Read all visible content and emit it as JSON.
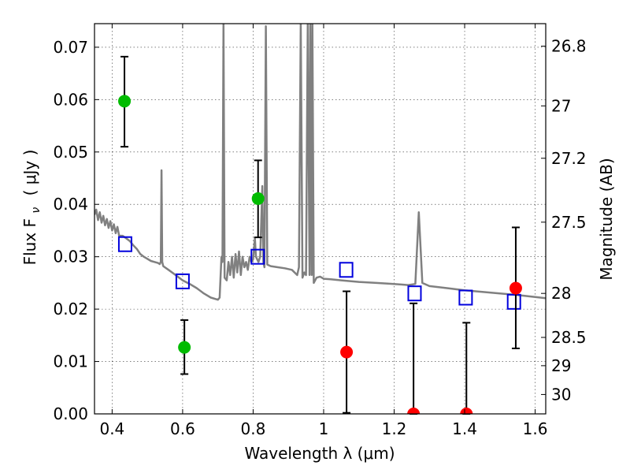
{
  "chart_data": {
    "type": "scatter",
    "x_axis": {
      "label": "Wavelength  λ (μm)",
      "range": [
        0.35,
        1.63
      ],
      "ticks": [
        0.4,
        0.6,
        0.8,
        1,
        1.2,
        1.4,
        1.6
      ],
      "tick_labels": [
        "0.4",
        "0.6",
        "0.8",
        "1",
        "1.2",
        "1.4",
        "1.6"
      ]
    },
    "y_axis": {
      "label": "Flux  F",
      "label_subscript": "ν",
      "label_units": "( μJy )",
      "range": [
        0.0,
        0.0745
      ],
      "ticks": [
        0.0,
        0.01,
        0.02,
        0.03,
        0.04,
        0.05,
        0.06,
        0.07
      ],
      "tick_labels": [
        "0.00",
        "0.01",
        "0.02",
        "0.03",
        "0.04",
        "0.05",
        "0.06",
        "0.07"
      ]
    },
    "y2_axis": {
      "label": "Magnitude (AB)",
      "tick_flux": [
        0.0702,
        0.0588,
        0.0488,
        0.0366,
        0.023,
        0.0146,
        0.0092,
        0.0037
      ],
      "tick_labels": [
        "26.8",
        "27",
        "27.2",
        "27.5",
        "28",
        "28.5",
        "29",
        "30"
      ]
    },
    "grid": true,
    "model_spectrum": {
      "color": "#808080",
      "points": [
        [
          0.35,
          0.038
        ],
        [
          0.355,
          0.039
        ],
        [
          0.36,
          0.037
        ],
        [
          0.365,
          0.0385
        ],
        [
          0.37,
          0.0365
        ],
        [
          0.375,
          0.0378
        ],
        [
          0.38,
          0.036
        ],
        [
          0.385,
          0.0372
        ],
        [
          0.39,
          0.0355
        ],
        [
          0.395,
          0.0368
        ],
        [
          0.4,
          0.035
        ],
        [
          0.405,
          0.0362
        ],
        [
          0.41,
          0.0345
        ],
        [
          0.415,
          0.0357
        ],
        [
          0.42,
          0.034
        ],
        [
          0.43,
          0.034
        ],
        [
          0.44,
          0.0335
        ],
        [
          0.45,
          0.033
        ],
        [
          0.46,
          0.0322
        ],
        [
          0.47,
          0.0315
        ],
        [
          0.48,
          0.0305
        ],
        [
          0.49,
          0.03
        ],
        [
          0.5,
          0.0296
        ],
        [
          0.51,
          0.0292
        ],
        [
          0.52,
          0.029
        ],
        [
          0.53,
          0.0288
        ],
        [
          0.535,
          0.0286
        ],
        [
          0.538,
          0.029
        ],
        [
          0.54,
          0.0465
        ],
        [
          0.542,
          0.029
        ],
        [
          0.545,
          0.0282
        ],
        [
          0.56,
          0.0275
        ],
        [
          0.58,
          0.0265
        ],
        [
          0.6,
          0.0255
        ],
        [
          0.62,
          0.0248
        ],
        [
          0.64,
          0.024
        ],
        [
          0.66,
          0.023
        ],
        [
          0.68,
          0.0222
        ],
        [
          0.7,
          0.0218
        ],
        [
          0.705,
          0.0222
        ],
        [
          0.71,
          0.03
        ],
        [
          0.713,
          0.029
        ],
        [
          0.716,
          0.0745
        ],
        [
          0.719,
          0.026
        ],
        [
          0.725,
          0.0255
        ],
        [
          0.73,
          0.029
        ],
        [
          0.735,
          0.0265
        ],
        [
          0.74,
          0.03
        ],
        [
          0.745,
          0.026
        ],
        [
          0.75,
          0.0305
        ],
        [
          0.755,
          0.027
        ],
        [
          0.76,
          0.031
        ],
        [
          0.765,
          0.0265
        ],
        [
          0.77,
          0.03
        ],
        [
          0.775,
          0.028
        ],
        [
          0.78,
          0.029
        ],
        [
          0.785,
          0.0275
        ],
        [
          0.79,
          0.03
        ],
        [
          0.795,
          0.029
        ],
        [
          0.8,
          0.0295
        ],
        [
          0.805,
          0.0335
        ],
        [
          0.808,
          0.03
        ],
        [
          0.815,
          0.029
        ],
        [
          0.82,
          0.03
        ],
        [
          0.826,
          0.0435
        ],
        [
          0.829,
          0.029
        ],
        [
          0.832,
          0.028
        ],
        [
          0.836,
          0.074
        ],
        [
          0.84,
          0.0285
        ],
        [
          0.85,
          0.0282
        ],
        [
          0.87,
          0.028
        ],
        [
          0.89,
          0.0278
        ],
        [
          0.91,
          0.0275
        ],
        [
          0.925,
          0.0265
        ],
        [
          0.93,
          0.028
        ],
        [
          0.935,
          0.0745
        ],
        [
          0.94,
          0.026
        ],
        [
          0.945,
          0.027
        ],
        [
          0.95,
          0.0265
        ],
        [
          0.955,
          0.0745
        ],
        [
          0.96,
          0.0265
        ],
        [
          0.962,
          0.0745
        ],
        [
          0.966,
          0.0265
        ],
        [
          0.968,
          0.0745
        ],
        [
          0.972,
          0.025
        ],
        [
          0.98,
          0.026
        ],
        [
          0.99,
          0.0262
        ],
        [
          1.0,
          0.0258
        ],
        [
          1.02,
          0.0257
        ],
        [
          1.05,
          0.0255
        ],
        [
          1.1,
          0.0252
        ],
        [
          1.15,
          0.025
        ],
        [
          1.2,
          0.0248
        ],
        [
          1.24,
          0.0246
        ],
        [
          1.26,
          0.0248
        ],
        [
          1.27,
          0.0385
        ],
        [
          1.28,
          0.025
        ],
        [
          1.3,
          0.0244
        ],
        [
          1.35,
          0.024
        ],
        [
          1.4,
          0.0236
        ],
        [
          1.45,
          0.0233
        ],
        [
          1.5,
          0.023
        ],
        [
          1.55,
          0.0227
        ],
        [
          1.6,
          0.0223
        ],
        [
          1.63,
          0.0221
        ]
      ]
    },
    "observed_detections": {
      "color": "#00bb00",
      "points": [
        {
          "x": 0.435,
          "y": 0.0597,
          "yerr_low": 0.0087,
          "yerr_high": 0.0085
        },
        {
          "x": 0.605,
          "y": 0.0127,
          "yerr_low": 0.0051,
          "yerr_high": 0.0052
        },
        {
          "x": 0.814,
          "y": 0.0411,
          "yerr_low": 0.0074,
          "yerr_high": 0.0073
        }
      ]
    },
    "observed_nondetections": {
      "color": "#ff0000",
      "points": [
        {
          "x": 1.065,
          "y": 0.0118,
          "yerr_low": 0.0116,
          "yerr_high": 0.0116
        },
        {
          "x": 1.255,
          "y": 0.0,
          "yerr_low": 0.0,
          "yerr_high": 0.0211
        },
        {
          "x": 1.405,
          "y": 0.0,
          "yerr_low": 0.0,
          "yerr_high": 0.0174
        },
        {
          "x": 1.545,
          "y": 0.024,
          "yerr_low": 0.0115,
          "yerr_high": 0.0116
        }
      ]
    },
    "model_photometry": {
      "color": "#0000dd",
      "points": [
        {
          "x": 0.437,
          "y": 0.0324
        },
        {
          "x": 0.6,
          "y": 0.0253
        },
        {
          "x": 0.813,
          "y": 0.03
        },
        {
          "x": 1.064,
          "y": 0.0275
        },
        {
          "x": 1.258,
          "y": 0.023
        },
        {
          "x": 1.403,
          "y": 0.0222
        },
        {
          "x": 1.54,
          "y": 0.0214
        }
      ]
    }
  }
}
